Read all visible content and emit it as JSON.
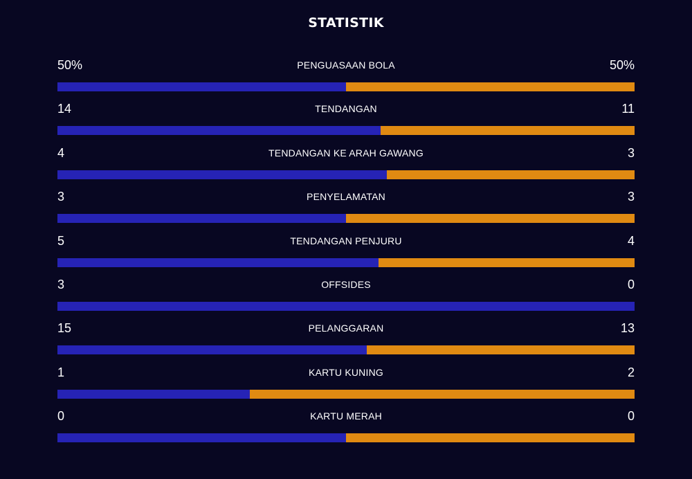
{
  "title": "STATISTIK",
  "colors": {
    "background": "#080722",
    "home": "#2623b5",
    "away": "#e08a12"
  },
  "stats": [
    {
      "label": "PENGUASAAN BOLA",
      "home": "50%",
      "away": "50%",
      "home_share": 0.5
    },
    {
      "label": "TENDANGAN",
      "home": "14",
      "away": "11",
      "home_share": 0.56
    },
    {
      "label": "TENDANGAN KE ARAH GAWANG",
      "home": "4",
      "away": "3",
      "home_share": 0.571
    },
    {
      "label": "PENYELAMATAN",
      "home": "3",
      "away": "3",
      "home_share": 0.5
    },
    {
      "label": "TENDANGAN PENJURU",
      "home": "5",
      "away": "4",
      "home_share": 0.556
    },
    {
      "label": "OFFSIDES",
      "home": "3",
      "away": "0",
      "home_share": 1.0
    },
    {
      "label": "PELANGGARAN",
      "home": "15",
      "away": "13",
      "home_share": 0.536
    },
    {
      "label": "KARTU KUNING",
      "home": "1",
      "away": "2",
      "home_share": 0.333
    },
    {
      "label": "KARTU MERAH",
      "home": "0",
      "away": "0",
      "home_share": 0.5
    }
  ]
}
